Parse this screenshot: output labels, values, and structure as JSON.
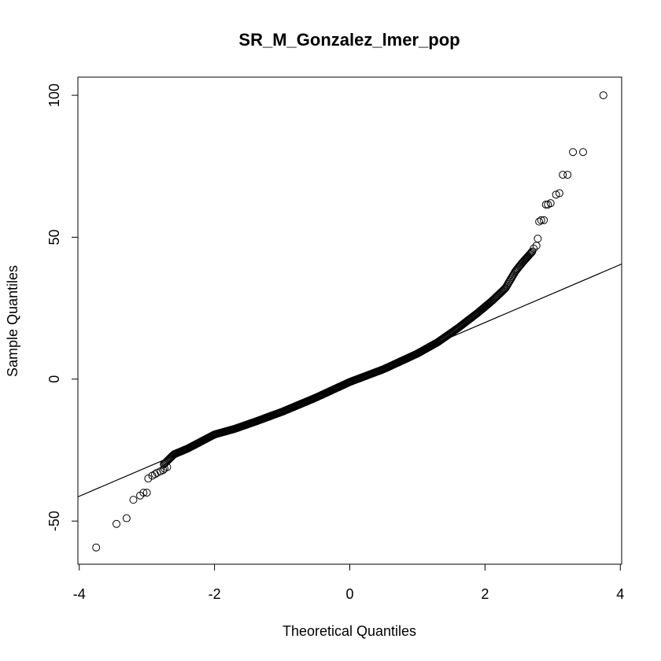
{
  "chart_data": {
    "type": "scatter",
    "subtype": "qq-plot",
    "title": "SR_M_Gonzalez_lmer_pop",
    "xlabel": "Theoretical Quantiles",
    "ylabel": "Sample Quantiles",
    "xlim": [
      -4.02,
      4.02
    ],
    "ylim": [
      -65.2,
      106.4
    ],
    "x_ticks": [
      -4,
      -2,
      0,
      2,
      4
    ],
    "x_tick_labels": [
      "-4",
      "-2",
      "0",
      "2",
      "4"
    ],
    "y_ticks": [
      -50,
      0,
      50,
      100
    ],
    "y_tick_labels": [
      "-50",
      "0",
      "50",
      "100"
    ],
    "reference_line": {
      "intercept": -0.45,
      "slope": 10.2
    },
    "body_curve": [
      [
        -2.75,
        -30
      ],
      [
        -2.6,
        -26.5
      ],
      [
        -2.4,
        -24.5
      ],
      [
        -2.2,
        -22
      ],
      [
        -2.0,
        -19.5
      ],
      [
        -1.7,
        -17.5
      ],
      [
        -1.4,
        -15
      ],
      [
        -1.0,
        -11.5
      ],
      [
        -0.5,
        -6.5
      ],
      [
        0.0,
        -1
      ],
      [
        0.5,
        3.5
      ],
      [
        1.0,
        9
      ],
      [
        1.3,
        13
      ],
      [
        1.6,
        18
      ],
      [
        1.9,
        23.5
      ],
      [
        2.1,
        27.5
      ],
      [
        2.3,
        32
      ],
      [
        2.45,
        38
      ],
      [
        2.55,
        41
      ],
      [
        2.7,
        45
      ]
    ],
    "tail_points": [
      [
        -3.75,
        -59.3
      ],
      [
        -3.45,
        -51
      ],
      [
        -3.3,
        -49
      ],
      [
        -3.2,
        -42.5
      ],
      [
        -3.1,
        -41
      ],
      [
        -3.05,
        -40
      ],
      [
        -3.0,
        -40
      ],
      [
        -2.98,
        -35
      ],
      [
        -2.92,
        -34
      ],
      [
        -2.88,
        -33.5
      ],
      [
        -2.85,
        -33
      ],
      [
        -2.8,
        -32.5
      ],
      [
        -2.76,
        -32
      ],
      [
        -2.74,
        -31.5
      ],
      [
        -2.7,
        -31
      ],
      [
        2.72,
        46
      ],
      [
        2.76,
        47
      ],
      [
        2.78,
        49.5
      ],
      [
        2.8,
        55.5
      ],
      [
        2.83,
        56
      ],
      [
        2.87,
        56
      ],
      [
        2.9,
        61.5
      ],
      [
        2.93,
        61.5
      ],
      [
        2.97,
        62
      ],
      [
        3.05,
        65
      ],
      [
        3.1,
        65.5
      ],
      [
        3.15,
        72
      ],
      [
        3.22,
        72
      ],
      [
        3.3,
        80
      ],
      [
        3.45,
        80
      ],
      [
        3.75,
        100
      ]
    ]
  }
}
